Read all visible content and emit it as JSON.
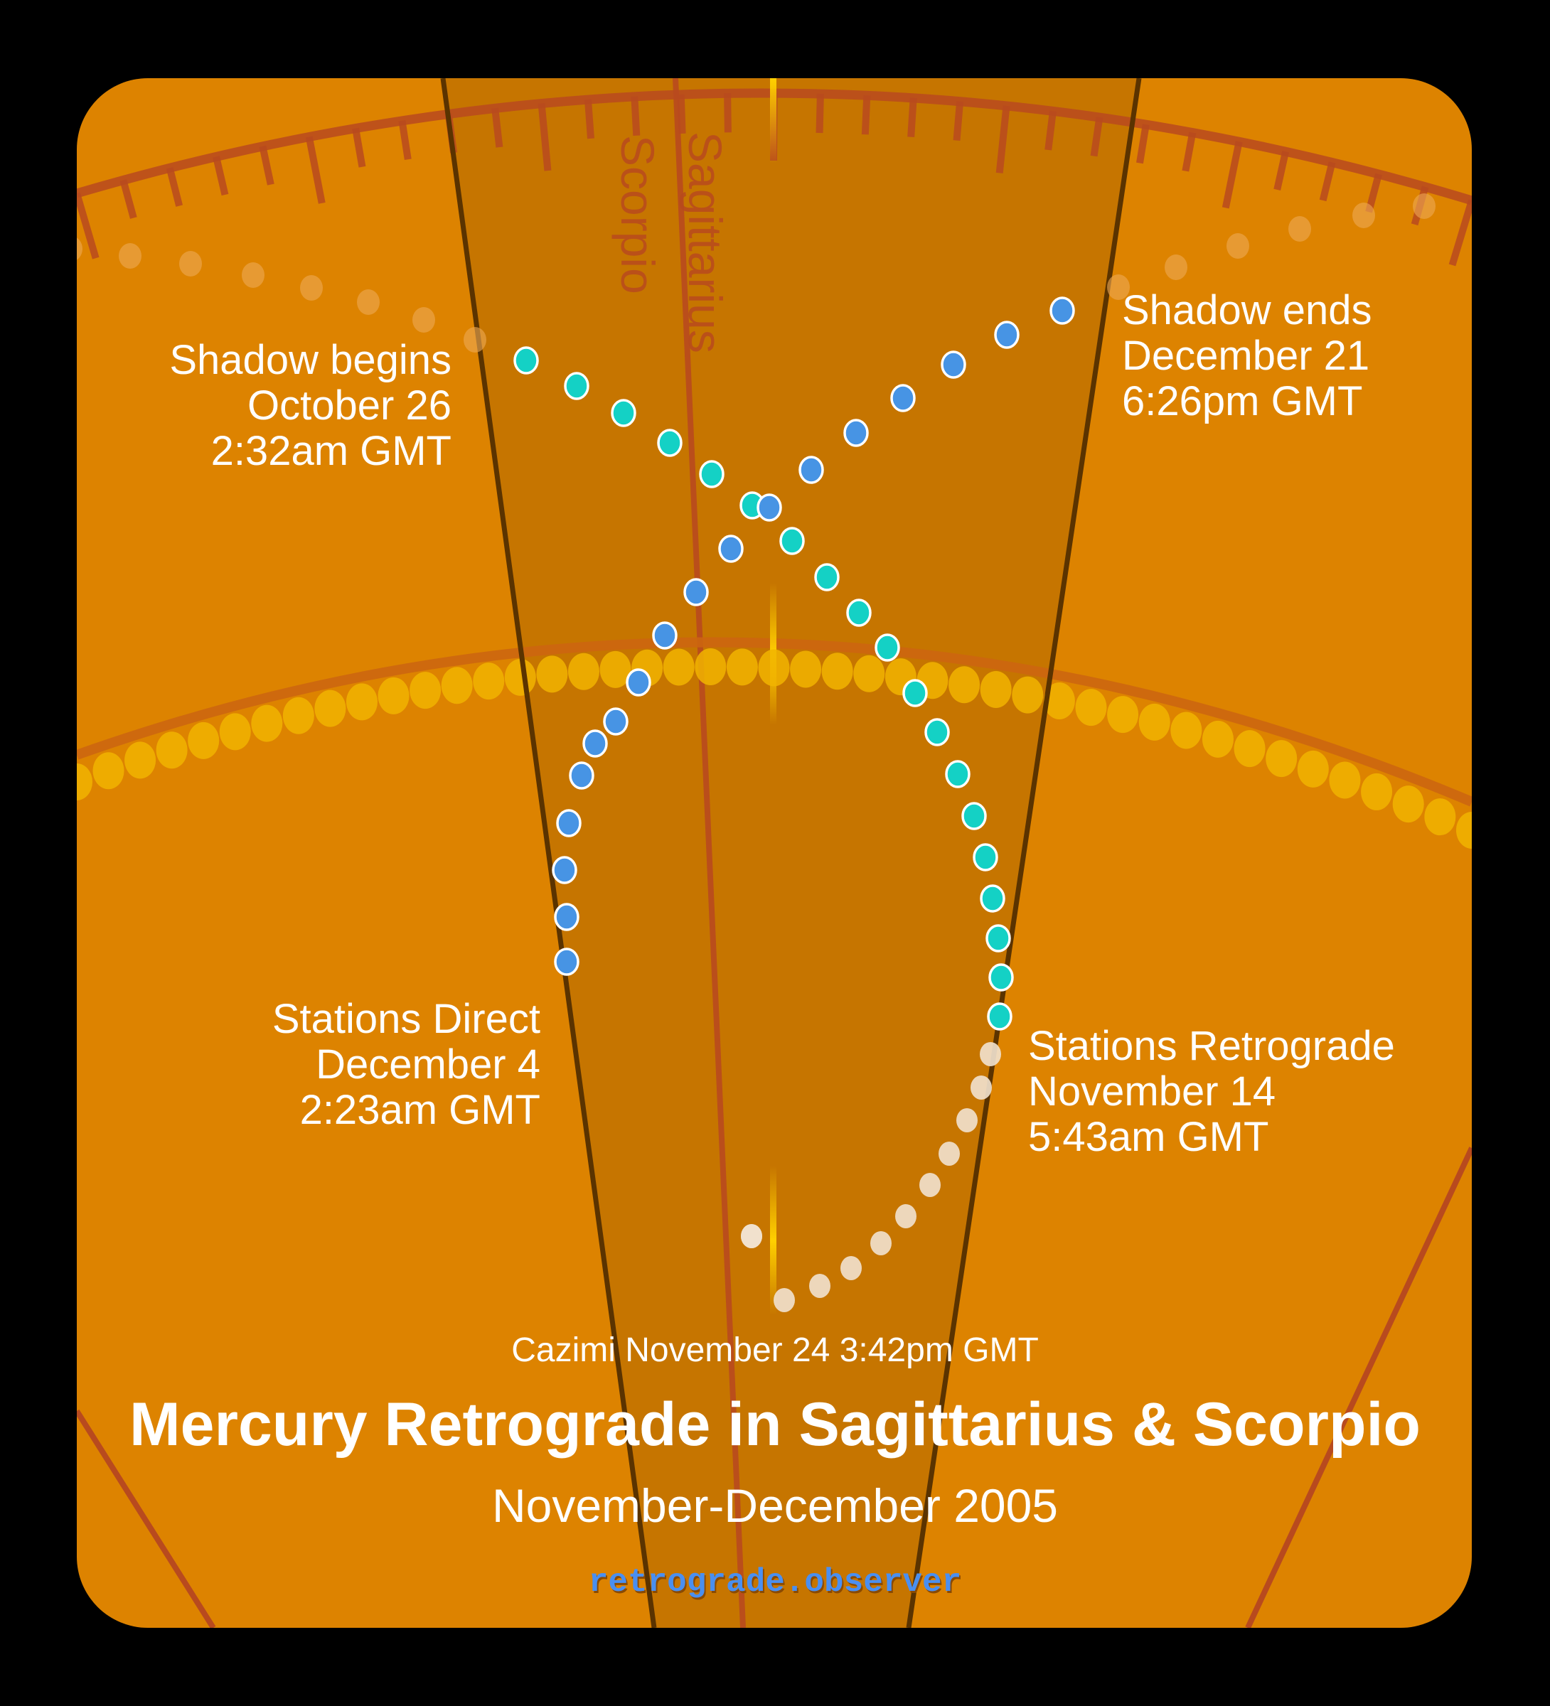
{
  "colors": {
    "background": "#000000",
    "card": "#dd8300",
    "wedge": "#c67500",
    "wedge_edge": "#5a3300",
    "ecliptic_line": "#b84a1e",
    "sun_path": "#cc6610",
    "sun_dot": "#f1b400",
    "sun_line": "#ffd000",
    "retro_dot": "#f1e2cf",
    "pre_shadow_dot": "#14d1c5",
    "post_shadow_dot": "#4794e4",
    "outside_shadow_dot": "#eeaa55",
    "site_text": "#4a8ff0"
  },
  "signs": {
    "sagittarius": "Sagittarius",
    "scorpio": "Scorpio"
  },
  "labels": {
    "shadow_begins": {
      "line1": "Shadow begins",
      "line2": "October 26",
      "line3": "2:32am GMT"
    },
    "shadow_ends": {
      "line1": "Shadow ends",
      "line2": "December 21",
      "line3": "6:26pm GMT"
    },
    "stations_direct": {
      "line1": "Stations Direct",
      "line2": "December 4",
      "line3": "2:23am GMT"
    },
    "stations_retrograde": {
      "line1": "Stations Retrograde",
      "line2": "November 14",
      "line3": "5:43am GMT"
    }
  },
  "footer": {
    "cazimi": "Cazimi November 24 3:42pm GMT",
    "title": "Mercury Retrograde in Sagittarius & Scorpio",
    "subtitle": "November-December 2005",
    "site": "retrograde.observer"
  },
  "chart_data": {
    "type": "scatter",
    "title": "Mercury Retrograde in Sagittarius & Scorpio",
    "subtitle": "November-December 2005",
    "annotations": [
      "Shadow begins October 26 2:32am GMT",
      "Stations Retrograde November 14 5:43am GMT",
      "Cazimi November 24 3:42pm GMT",
      "Stations Direct December 4 2:23am GMT",
      "Shadow ends December 21 6:26pm GMT"
    ],
    "series": [
      {
        "name": "outside-shadow-before",
        "color": "#eeaa55",
        "points": [
          [
            100,
            350
          ],
          [
            183,
            360
          ],
          [
            268,
            371
          ],
          [
            356,
            387
          ],
          [
            438,
            405
          ],
          [
            518,
            425
          ],
          [
            596,
            450
          ],
          [
            668,
            478
          ]
        ]
      },
      {
        "name": "pre-shadow",
        "color": "#14d1c5",
        "points": [
          [
            740,
            507
          ],
          [
            811,
            543
          ],
          [
            877,
            581
          ],
          [
            942,
            623
          ],
          [
            1001,
            667
          ],
          [
            1058,
            711
          ],
          [
            1114,
            761
          ],
          [
            1163,
            812
          ],
          [
            1208,
            862
          ],
          [
            1248,
            911
          ],
          [
            1287,
            975
          ],
          [
            1318,
            1030
          ],
          [
            1347,
            1089
          ],
          [
            1370,
            1148
          ],
          [
            1386,
            1206
          ],
          [
            1396,
            1264
          ],
          [
            1404,
            1320
          ],
          [
            1408,
            1375
          ],
          [
            1406,
            1430
          ]
        ]
      },
      {
        "name": "retrograde",
        "color": "#f1e2cf",
        "points": [
          [
            1393,
            1483
          ],
          [
            1380,
            1530
          ],
          [
            1360,
            1576
          ],
          [
            1335,
            1623
          ],
          [
            1308,
            1667
          ],
          [
            1274,
            1711
          ],
          [
            1239,
            1749
          ],
          [
            1197,
            1784
          ],
          [
            1153,
            1809
          ],
          [
            1103,
            1829
          ],
          [
            1057,
            1739
          ],
          [
            1057,
            1739
          ]
        ]
      },
      {
        "name": "post-shadow",
        "color": "#4794e4",
        "points": [
          [
            797,
            1353
          ],
          [
            797,
            1290
          ],
          [
            794,
            1224
          ],
          [
            800,
            1158
          ],
          [
            818,
            1091
          ],
          [
            837,
            1046
          ],
          [
            866,
            1015
          ],
          [
            898,
            960
          ],
          [
            935,
            894
          ],
          [
            979,
            833
          ],
          [
            1028,
            772
          ],
          [
            1082,
            714
          ],
          [
            1141,
            661
          ],
          [
            1204,
            609
          ],
          [
            1270,
            560
          ],
          [
            1341,
            513
          ],
          [
            1416,
            471
          ],
          [
            1494,
            437
          ]
        ]
      },
      {
        "name": "outside-shadow-after",
        "color": "#eeaa55",
        "points": [
          [
            1573,
            404
          ],
          [
            1654,
            376
          ],
          [
            1741,
            346
          ],
          [
            1828,
            322
          ],
          [
            1918,
            303
          ],
          [
            2003,
            290
          ]
        ]
      }
    ],
    "sun_path": {
      "color": "#f1b400",
      "description": "row of sun positions along lower arc"
    },
    "axes": {
      "ecliptic_ticks": "upper arc with degree tick marks",
      "sign_boundary": "Scorpio | Sagittarius"
    }
  }
}
